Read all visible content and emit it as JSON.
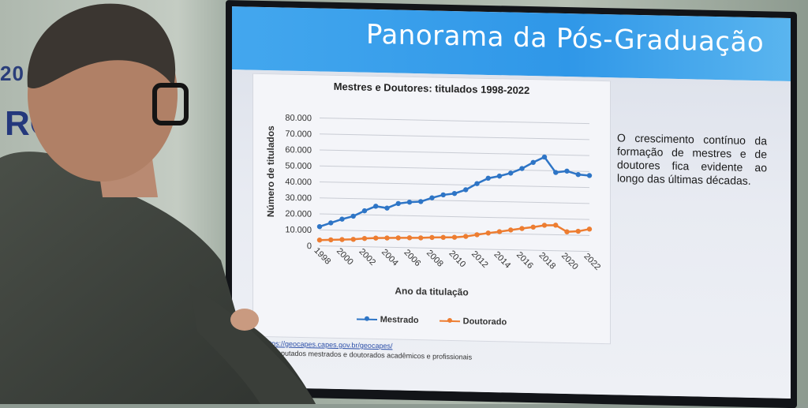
{
  "slide": {
    "title": "Panorama da Pós-Graduação",
    "side_text": "O crescimento contínuo da formação de mestres e de doutores fica evidente ao longo das últimas décadas.",
    "footnote_source": "https://geocapes.capes.gov.br/geocapes/",
    "footnote_note": "tão computados mestrados e doutorados acadêmicos e profissionais"
  },
  "chart_data": {
    "type": "line",
    "title": "Mestres e Doutores: titulados 1998-2022",
    "xlabel": "Ano da titulação",
    "ylabel": "Número de titulados",
    "ylim": [
      0,
      80000
    ],
    "yticks": [
      "0",
      "10.000",
      "20.000",
      "30.000",
      "40.000",
      "50.000",
      "60.000",
      "70.000",
      "80.000"
    ],
    "x": [
      1998,
      1999,
      2000,
      2001,
      2002,
      2003,
      2004,
      2005,
      2006,
      2007,
      2008,
      2009,
      2010,
      2011,
      2012,
      2013,
      2014,
      2015,
      2016,
      2017,
      2018,
      2019,
      2020,
      2021,
      2022
    ],
    "xticks": [
      "1998",
      "2000",
      "2002",
      "2004",
      "2006",
      "2008",
      "2010",
      "2012",
      "2014",
      "2016",
      "2018",
      "2020",
      "2022"
    ],
    "grid": true,
    "legend": "bottom",
    "series": [
      {
        "name": "Mestrado",
        "color": "#2e75c6",
        "values": [
          12000,
          14500,
          17000,
          19000,
          22500,
          25500,
          24500,
          27500,
          28500,
          29000,
          31500,
          33500,
          34500,
          37000,
          41000,
          44500,
          46000,
          48000,
          51000,
          55000,
          58500,
          49000,
          50000,
          48000,
          47500
        ]
      },
      {
        "name": "Doutorado",
        "color": "#ed7d31",
        "values": [
          3600,
          3900,
          4200,
          4500,
          5200,
          5600,
          5800,
          6000,
          6200,
          6300,
          6700,
          6900,
          7100,
          7800,
          9000,
          10200,
          11200,
          12400,
          13500,
          14500,
          15800,
          16000,
          12000,
          12500,
          14000
        ]
      }
    ]
  },
  "scene": {
    "banner_fragment_1": "20",
    "banner_fragment_2": "RC"
  }
}
